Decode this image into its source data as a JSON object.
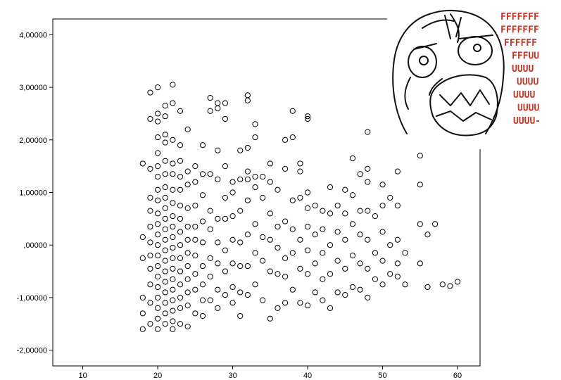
{
  "chart_data": {
    "type": "scatter",
    "title": "",
    "xlabel": "",
    "ylabel": "",
    "xlim": [
      6,
      63
    ],
    "ylim": [
      -2.3,
      4.3
    ],
    "x_ticks": [
      10,
      20,
      30,
      40,
      50,
      60
    ],
    "y_ticks": [
      -2,
      -1,
      0,
      1,
      2,
      3,
      4
    ],
    "y_tick_labels": [
      "-2,00000",
      "-1,00000",
      ",00000",
      "1,00000",
      "2,00000",
      "3,00000",
      "4,00000"
    ],
    "x_tick_labels": [
      "10",
      "20",
      "30",
      "40",
      "50",
      "60"
    ],
    "grid": false,
    "marker": "open-circle",
    "marker_color": "#000000",
    "points": [
      [
        18,
        1.55
      ],
      [
        18,
        0.15
      ],
      [
        18,
        -0.25
      ],
      [
        18,
        -1.0
      ],
      [
        18,
        -1.3
      ],
      [
        18,
        -1.6
      ],
      [
        19,
        2.9
      ],
      [
        19,
        2.4
      ],
      [
        19,
        1.45
      ],
      [
        19,
        0.9
      ],
      [
        19,
        0.65
      ],
      [
        19,
        0.35
      ],
      [
        19,
        0.05
      ],
      [
        19,
        -0.2
      ],
      [
        19,
        -0.45
      ],
      [
        19,
        -0.75
      ],
      [
        19,
        -1.1
      ],
      [
        19,
        -1.5
      ],
      [
        20,
        3.0
      ],
      [
        20,
        2.5
      ],
      [
        20,
        2.35
      ],
      [
        20,
        2.05
      ],
      [
        20,
        1.75
      ],
      [
        20,
        1.5
      ],
      [
        20,
        1.3
      ],
      [
        20,
        1.05
      ],
      [
        20,
        0.85
      ],
      [
        20,
        0.6
      ],
      [
        20,
        0.4
      ],
      [
        20,
        0.2
      ],
      [
        20,
        0.0
      ],
      [
        20,
        -0.2
      ],
      [
        20,
        -0.4
      ],
      [
        20,
        -0.6
      ],
      [
        20,
        -0.8
      ],
      [
        20,
        -1.0
      ],
      [
        20,
        -1.2
      ],
      [
        20,
        -1.4
      ],
      [
        20,
        -1.6
      ],
      [
        21,
        2.65
      ],
      [
        21,
        2.45
      ],
      [
        21,
        2.1
      ],
      [
        21,
        1.95
      ],
      [
        21,
        1.6
      ],
      [
        21,
        1.35
      ],
      [
        21,
        1.1
      ],
      [
        21,
        0.9
      ],
      [
        21,
        0.7
      ],
      [
        21,
        0.5
      ],
      [
        21,
        0.3
      ],
      [
        21,
        0.1
      ],
      [
        21,
        -0.1
      ],
      [
        21,
        -0.3
      ],
      [
        21,
        -0.5
      ],
      [
        21,
        -0.7
      ],
      [
        21,
        -0.9
      ],
      [
        21,
        -1.1
      ],
      [
        21,
        -1.3
      ],
      [
        21,
        -1.5
      ],
      [
        22,
        3.05
      ],
      [
        22,
        2.7
      ],
      [
        22,
        2.0
      ],
      [
        22,
        1.55
      ],
      [
        22,
        1.35
      ],
      [
        22,
        1.05
      ],
      [
        22,
        0.8
      ],
      [
        22,
        0.55
      ],
      [
        22,
        0.35
      ],
      [
        22,
        0.15
      ],
      [
        22,
        -0.05
      ],
      [
        22,
        -0.25
      ],
      [
        22,
        -0.45
      ],
      [
        22,
        -0.65
      ],
      [
        22,
        -0.85
      ],
      [
        22,
        -1.05
      ],
      [
        22,
        -1.25
      ],
      [
        22,
        -1.45
      ],
      [
        22,
        -1.6
      ],
      [
        23,
        2.55
      ],
      [
        23,
        1.9
      ],
      [
        23,
        1.6
      ],
      [
        23,
        1.3
      ],
      [
        23,
        1.05
      ],
      [
        23,
        0.75
      ],
      [
        23,
        0.5
      ],
      [
        23,
        0.25
      ],
      [
        23,
        0.0
      ],
      [
        23,
        -0.25
      ],
      [
        23,
        -0.5
      ],
      [
        23,
        -0.75
      ],
      [
        23,
        -1.0
      ],
      [
        23,
        -1.2
      ],
      [
        23,
        -1.5
      ],
      [
        24,
        2.2
      ],
      [
        24,
        1.4
      ],
      [
        24,
        1.15
      ],
      [
        24,
        0.7
      ],
      [
        24,
        0.35
      ],
      [
        24,
        0.1
      ],
      [
        24,
        -0.15
      ],
      [
        24,
        -0.4
      ],
      [
        24,
        -0.65
      ],
      [
        24,
        -0.9
      ],
      [
        24,
        -1.15
      ],
      [
        24,
        -1.55
      ],
      [
        25,
        1.5
      ],
      [
        25,
        1.2
      ],
      [
        25,
        0.75
      ],
      [
        25,
        0.35
      ],
      [
        25,
        0.1
      ],
      [
        25,
        -0.2
      ],
      [
        25,
        -0.55
      ],
      [
        25,
        -0.85
      ],
      [
        25,
        -1.3
      ],
      [
        26,
        1.9
      ],
      [
        26,
        1.35
      ],
      [
        26,
        0.95
      ],
      [
        26,
        0.45
      ],
      [
        26,
        0.05
      ],
      [
        26,
        -0.4
      ],
      [
        26,
        -0.75
      ],
      [
        26,
        -1.05
      ],
      [
        26,
        -1.35
      ],
      [
        27,
        2.8
      ],
      [
        27,
        2.55
      ],
      [
        27,
        1.35
      ],
      [
        27,
        0.65
      ],
      [
        27,
        0.3
      ],
      [
        27,
        -0.25
      ],
      [
        27,
        -0.6
      ],
      [
        27,
        -1.05
      ],
      [
        28,
        2.7
      ],
      [
        28,
        2.6
      ],
      [
        28,
        1.8
      ],
      [
        28,
        1.25
      ],
      [
        28,
        0.5
      ],
      [
        28,
        0.05
      ],
      [
        28,
        -0.35
      ],
      [
        28,
        -0.85
      ],
      [
        28,
        -1.2
      ],
      [
        29,
        2.7
      ],
      [
        29,
        2.4
      ],
      [
        29,
        1.5
      ],
      [
        29,
        0.9
      ],
      [
        29,
        0.5
      ],
      [
        29,
        -0.1
      ],
      [
        29,
        -0.5
      ],
      [
        29,
        -0.95
      ],
      [
        30,
        1.2
      ],
      [
        30,
        1.0
      ],
      [
        30,
        0.55
      ],
      [
        30,
        0.1
      ],
      [
        30,
        -0.35
      ],
      [
        30,
        -0.8
      ],
      [
        30,
        -1.1
      ],
      [
        31,
        1.8
      ],
      [
        31,
        1.25
      ],
      [
        31,
        0.65
      ],
      [
        31,
        0.05
      ],
      [
        31,
        -0.4
      ],
      [
        31,
        -0.9
      ],
      [
        31,
        -1.35
      ],
      [
        32,
        2.85
      ],
      [
        32,
        2.75
      ],
      [
        32,
        1.85
      ],
      [
        32,
        1.4
      ],
      [
        32,
        1.25
      ],
      [
        32,
        0.85
      ],
      [
        32,
        0.2
      ],
      [
        32,
        -0.4
      ],
      [
        32,
        -0.95
      ],
      [
        33,
        2.3
      ],
      [
        33,
        2.05
      ],
      [
        33,
        1.3
      ],
      [
        33,
        1.1
      ],
      [
        33,
        0.4
      ],
      [
        33,
        -0.15
      ],
      [
        33,
        -0.75
      ],
      [
        34,
        1.3
      ],
      [
        34,
        0.9
      ],
      [
        34,
        0.15
      ],
      [
        34,
        -0.3
      ],
      [
        34,
        -1.05
      ],
      [
        35,
        1.55
      ],
      [
        35,
        1.2
      ],
      [
        35,
        0.6
      ],
      [
        35,
        0.1
      ],
      [
        35,
        -0.5
      ],
      [
        35,
        -1.4
      ],
      [
        36,
        1.05
      ],
      [
        36,
        0.35
      ],
      [
        36,
        -0.05
      ],
      [
        36,
        -0.55
      ],
      [
        36,
        -1.2
      ],
      [
        37,
        2.0
      ],
      [
        37,
        1.45
      ],
      [
        37,
        0.45
      ],
      [
        37,
        -0.25
      ],
      [
        37,
        -0.6
      ],
      [
        37,
        -1.1
      ],
      [
        38,
        2.55
      ],
      [
        38,
        2.05
      ],
      [
        38,
        0.85
      ],
      [
        38,
        0.3
      ],
      [
        38,
        -0.15
      ],
      [
        38,
        -0.85
      ],
      [
        39,
        1.55
      ],
      [
        39,
        1.4
      ],
      [
        39,
        0.9
      ],
      [
        39,
        0.1
      ],
      [
        39,
        -0.45
      ],
      [
        39,
        -1.1
      ],
      [
        40,
        2.45
      ],
      [
        40,
        2.4
      ],
      [
        40,
        1.0
      ],
      [
        40,
        0.7
      ],
      [
        40,
        0.35
      ],
      [
        40,
        -0.1
      ],
      [
        40,
        -0.55
      ],
      [
        40,
        -1.15
      ],
      [
        41,
        0.75
      ],
      [
        41,
        0.2
      ],
      [
        41,
        -0.35
      ],
      [
        41,
        -0.9
      ],
      [
        42,
        0.65
      ],
      [
        42,
        0.3
      ],
      [
        42,
        -0.15
      ],
      [
        42,
        -0.65
      ],
      [
        42,
        -1.05
      ],
      [
        43,
        1.1
      ],
      [
        43,
        0.6
      ],
      [
        43,
        0.0
      ],
      [
        43,
        -0.55
      ],
      [
        43,
        -1.2
      ],
      [
        44,
        0.75
      ],
      [
        44,
        0.25
      ],
      [
        44,
        -0.3
      ],
      [
        44,
        -0.9
      ],
      [
        45,
        1.05
      ],
      [
        45,
        0.6
      ],
      [
        45,
        0.1
      ],
      [
        45,
        -0.45
      ],
      [
        45,
        -0.95
      ],
      [
        46,
        1.65
      ],
      [
        46,
        0.95
      ],
      [
        46,
        0.4
      ],
      [
        46,
        -0.2
      ],
      [
        46,
        -0.8
      ],
      [
        47,
        1.35
      ],
      [
        47,
        0.65
      ],
      [
        47,
        0.2
      ],
      [
        47,
        -0.35
      ],
      [
        47,
        -0.85
      ],
      [
        48,
        2.15
      ],
      [
        48,
        1.45
      ],
      [
        48,
        1.2
      ],
      [
        48,
        0.65
      ],
      [
        48,
        0.1
      ],
      [
        48,
        -0.45
      ],
      [
        48,
        -1.0
      ],
      [
        49,
        0.55
      ],
      [
        49,
        -0.15
      ],
      [
        49,
        -0.65
      ],
      [
        50,
        1.15
      ],
      [
        50,
        0.75
      ],
      [
        50,
        0.25
      ],
      [
        50,
        -0.3
      ],
      [
        50,
        -0.75
      ],
      [
        51,
        0.9
      ],
      [
        51,
        0.0
      ],
      [
        51,
        -0.55
      ],
      [
        52,
        1.4
      ],
      [
        52,
        0.75
      ],
      [
        52,
        0.1
      ],
      [
        52,
        -0.35
      ],
      [
        52,
        -0.6
      ],
      [
        53,
        -0.15
      ],
      [
        53,
        -0.75
      ],
      [
        55,
        1.7
      ],
      [
        55,
        1.15
      ],
      [
        55,
        0.4
      ],
      [
        55,
        -0.35
      ],
      [
        56,
        0.2
      ],
      [
        56,
        -0.8
      ],
      [
        57,
        0.4
      ],
      [
        58,
        -0.75
      ],
      [
        59,
        -0.78
      ],
      [
        60,
        -0.7
      ]
    ]
  },
  "meme": {
    "name": "rage-face",
    "text_lines": [
      "FFFFFFF",
      "FFFFFFF",
      "FFFFFF",
      "FFFUU",
      "UUUU",
      "UUUU",
      "UUUU",
      "UUUU",
      "UUUU-"
    ],
    "text_color": "#c0392b"
  }
}
